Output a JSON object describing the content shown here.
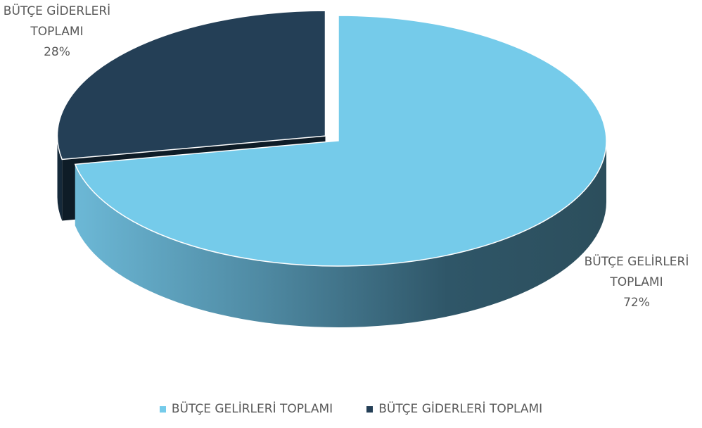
{
  "chart_data": {
    "type": "pie",
    "categories": [
      "BÜTÇE GELİRLERİ TOPLAMI",
      "BÜTÇE GİDERLERİ TOPLAMI"
    ],
    "values": [
      72,
      28
    ],
    "value_labels": [
      "72%",
      "28%"
    ],
    "colors": [
      "#75cbea",
      "#243f56"
    ],
    "legend": "bottom"
  }
}
